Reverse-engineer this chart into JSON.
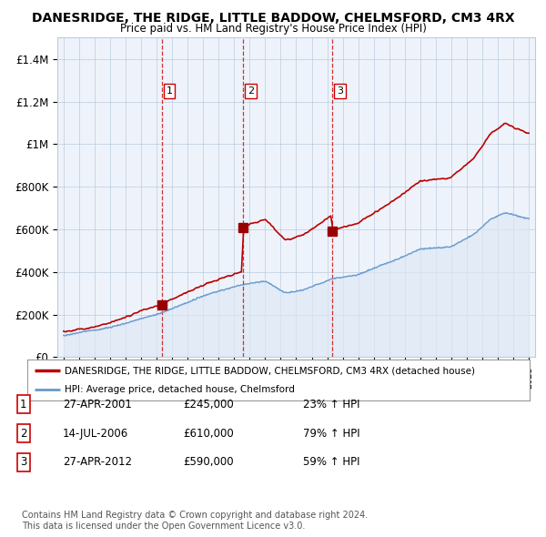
{
  "title": "DANESRIDGE, THE RIDGE, LITTLE BADDOW, CHELMSFORD, CM3 4RX",
  "subtitle": "Price paid vs. HM Land Registry's House Price Index (HPI)",
  "ylim": [
    0,
    1500000
  ],
  "yticks": [
    0,
    200000,
    400000,
    600000,
    800000,
    1000000,
    1200000,
    1400000
  ],
  "ytick_labels": [
    "£0",
    "£200K",
    "£400K",
    "£600K",
    "£800K",
    "£1M",
    "£1.2M",
    "£1.4M"
  ],
  "line_color_red": "#bb0000",
  "line_color_blue": "#6699cc",
  "fill_color_blue": "#dde8f5",
  "dot_color_red": "#990000",
  "chart_bg": "#eef3fb",
  "purchase_dates": [
    2001.32,
    2006.54,
    2012.32
  ],
  "purchase_prices": [
    245000,
    610000,
    590000
  ],
  "purchase_labels": [
    "1",
    "2",
    "3"
  ],
  "legend_red": "DANESRIDGE, THE RIDGE, LITTLE BADDOW, CHELMSFORD, CM3 4RX (detached house)",
  "legend_blue": "HPI: Average price, detached house, Chelmsford",
  "table_rows": [
    {
      "num": "1",
      "date": "27-APR-2001",
      "price": "£245,000",
      "pct": "23% ↑ HPI"
    },
    {
      "num": "2",
      "date": "14-JUL-2006",
      "price": "£610,000",
      "pct": "79% ↑ HPI"
    },
    {
      "num": "3",
      "date": "27-APR-2012",
      "price": "£590,000",
      "pct": "59% ↑ HPI"
    }
  ],
  "footnote1": "Contains HM Land Registry data © Crown copyright and database right 2024.",
  "footnote2": "This data is licensed under the Open Government Licence v3.0.",
  "background_color": "#ffffff",
  "grid_color": "#bbccdd",
  "vline_color": "#cc0000",
  "xstart": 1995,
  "xend": 2025
}
